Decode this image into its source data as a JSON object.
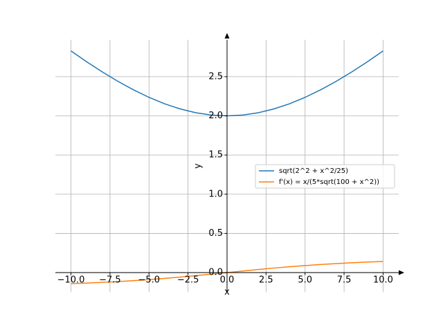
{
  "chart_data": {
    "type": "line",
    "x": [
      -10,
      -9,
      -8,
      -7,
      -6,
      -5,
      -4,
      -3,
      -2,
      -1,
      0,
      1,
      2,
      3,
      4,
      5,
      6,
      7,
      8,
      9,
      10
    ],
    "series": [
      {
        "name": "sqrt(2^2 + x^2/25)",
        "color": "#1f77b4",
        "values": [
          2.8284,
          2.6907,
          2.5612,
          2.4413,
          2.3324,
          2.2361,
          2.1541,
          2.0881,
          2.0396,
          2.01,
          2,
          2.01,
          2.0396,
          2.0881,
          2.1541,
          2.2361,
          2.3324,
          2.4413,
          2.5612,
          2.6907,
          2.8284
        ]
      },
      {
        "name": "f'(x) = x/(5*sqrt(100 + x^2))",
        "color": "#ff7f0e",
        "values": [
          -0.1414,
          -0.1338,
          -0.1249,
          -0.1147,
          -0.1029,
          -0.0894,
          -0.0743,
          -0.0575,
          -0.0392,
          -0.0199,
          0,
          0.0199,
          0.0392,
          0.0575,
          0.0743,
          0.0894,
          0.1029,
          0.1147,
          0.1249,
          0.1338,
          0.1414
        ]
      }
    ],
    "x_label": "x",
    "y_label": "y",
    "xlim": [
      -11,
      11
    ],
    "ylim": [
      -0.25,
      2.97
    ],
    "xticks": [
      {
        "value": -10,
        "label": "−10.0"
      },
      {
        "value": -7.5,
        "label": "−7.5"
      },
      {
        "value": -5,
        "label": "−5.0"
      },
      {
        "value": -2.5,
        "label": "−2.5"
      },
      {
        "value": 0,
        "label": "0.0"
      },
      {
        "value": 2.5,
        "label": "2.5"
      },
      {
        "value": 5,
        "label": "5.0"
      },
      {
        "value": 7.5,
        "label": "7.5"
      },
      {
        "value": 10,
        "label": "10.0"
      }
    ],
    "yticks": [
      {
        "value": 0,
        "label": "0.0"
      },
      {
        "value": 0.5,
        "label": "0.5"
      },
      {
        "value": 1,
        "label": "1.0"
      },
      {
        "value": 1.5,
        "label": "1.5"
      },
      {
        "value": 2,
        "label": "2.0"
      },
      {
        "value": 2.5,
        "label": "2.5"
      }
    ],
    "grid": true,
    "legend": "center right"
  }
}
